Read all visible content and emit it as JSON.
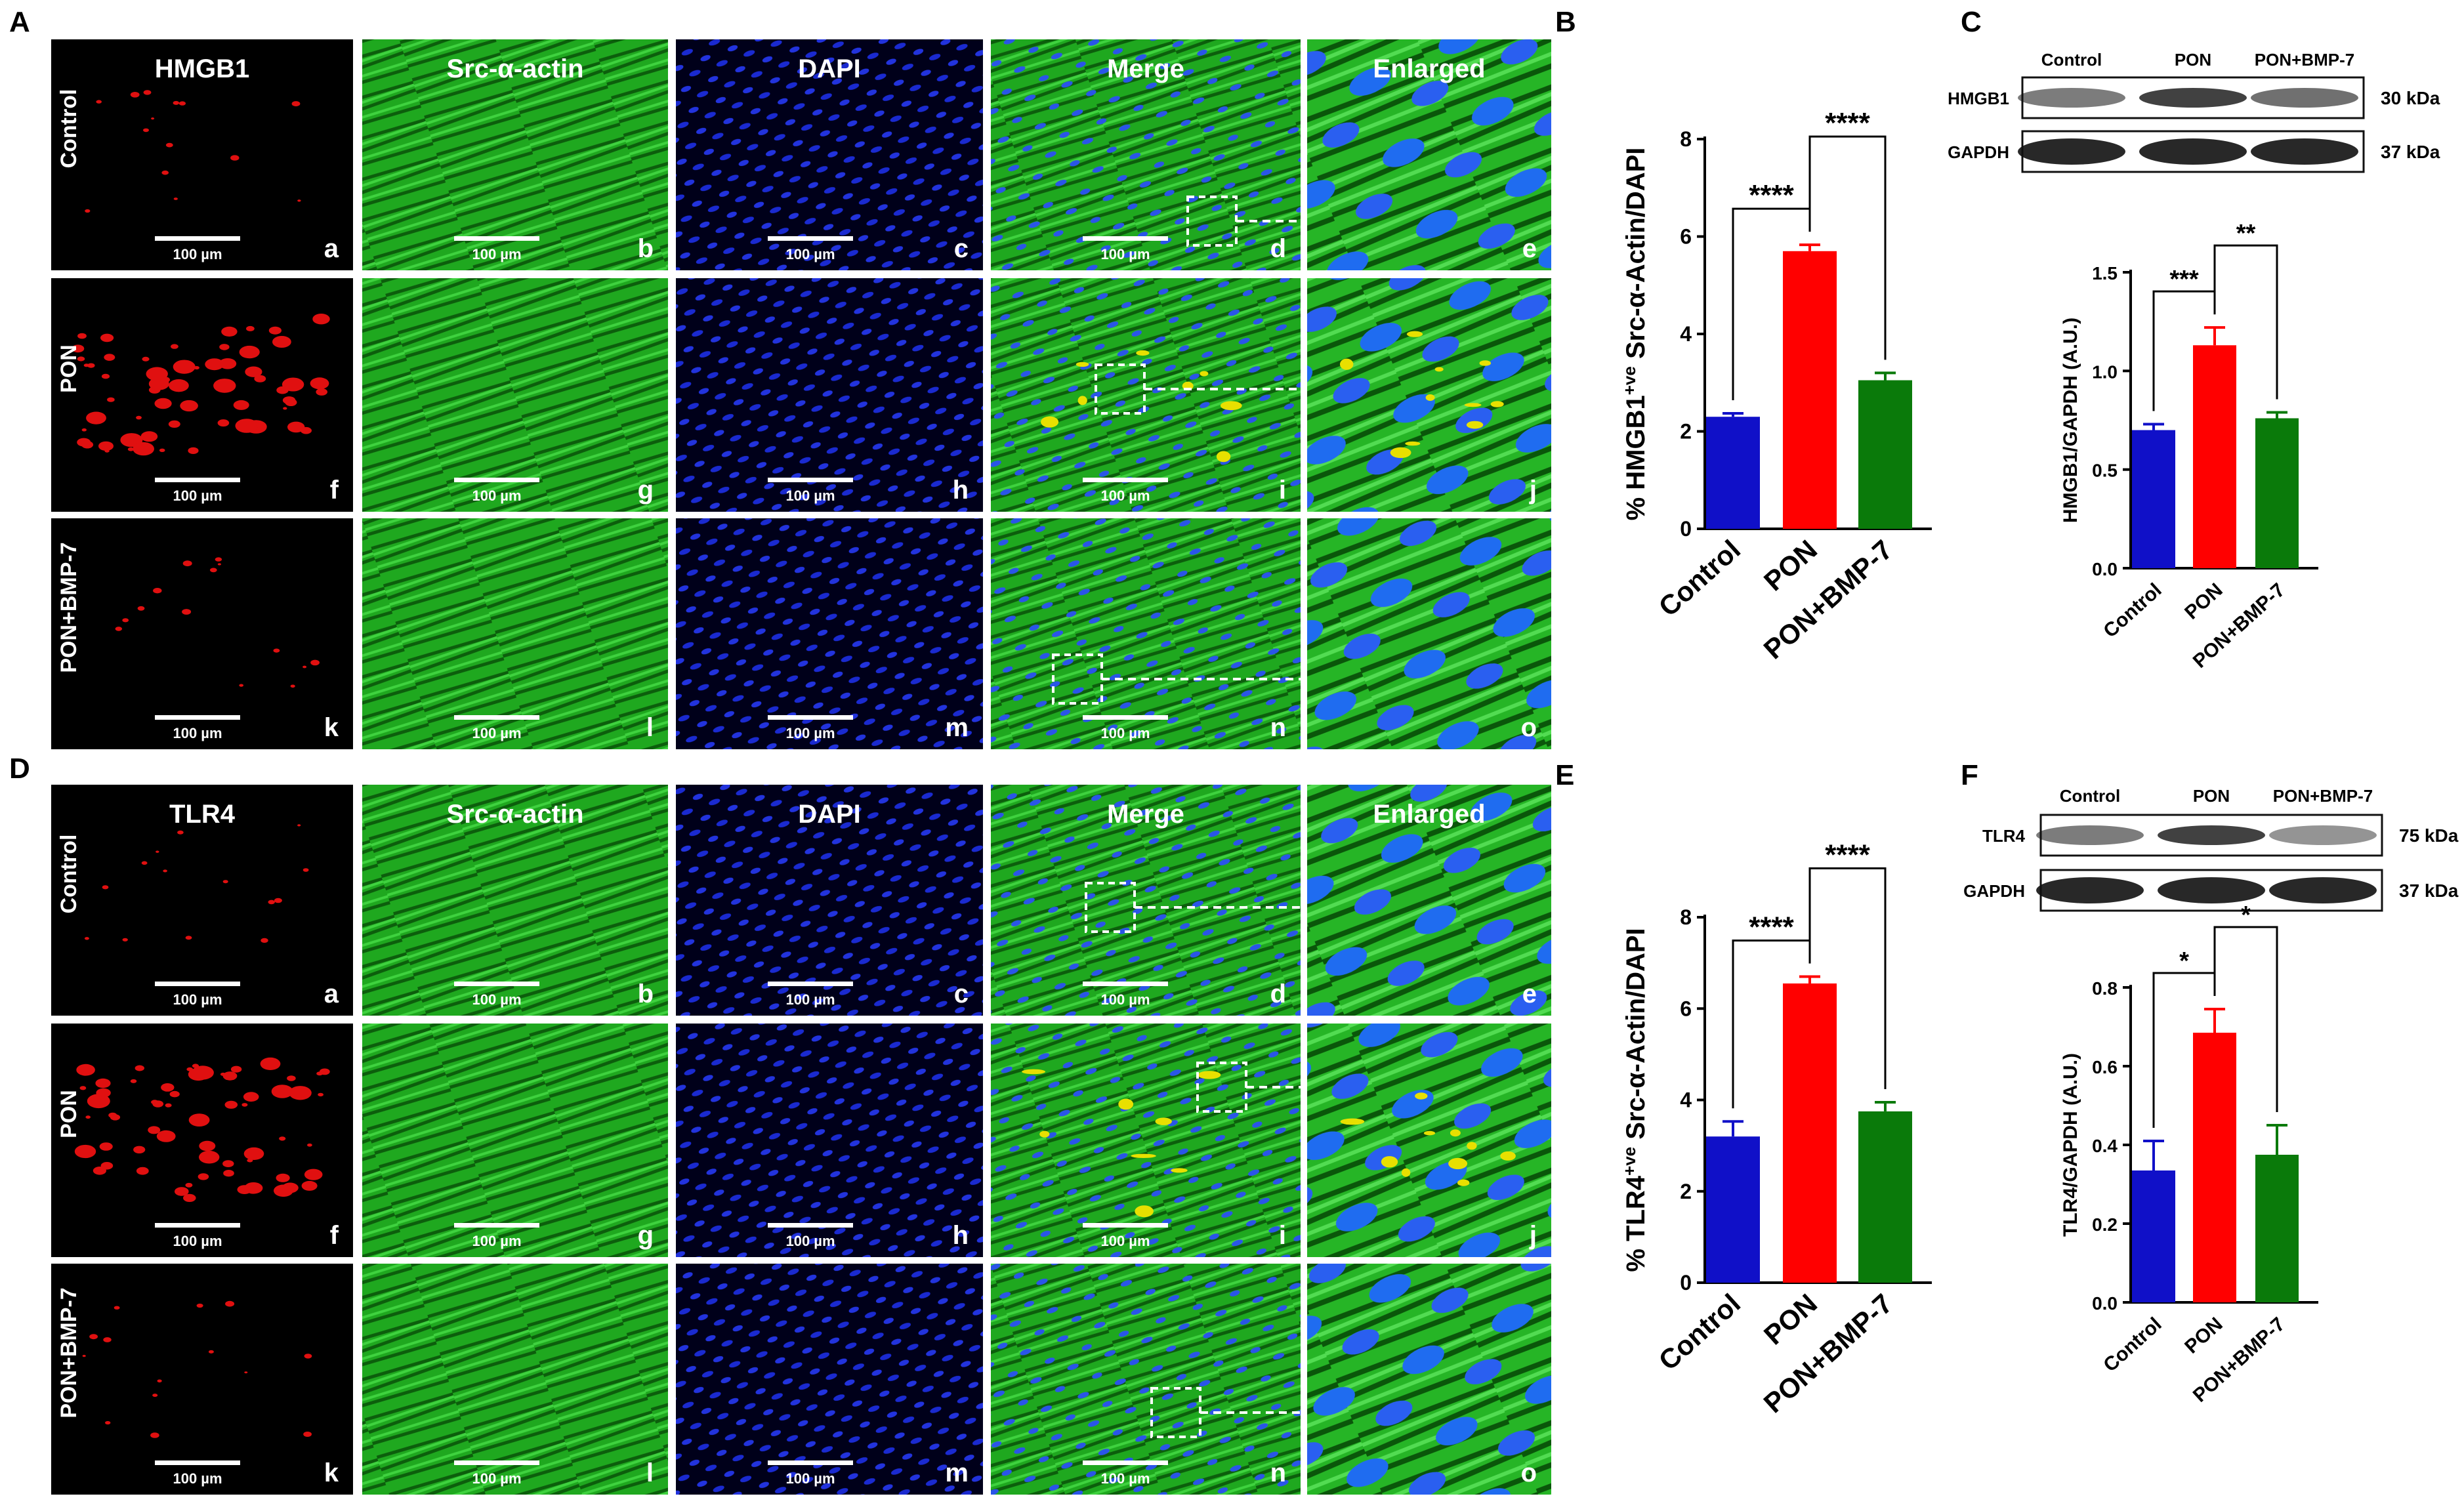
{
  "panels": {
    "A": "A",
    "B": "B",
    "C": "C",
    "D": "D",
    "E": "E",
    "F": "F"
  },
  "micrographs": [
    {
      "column_titles": [
        "HMGB1",
        "Src-α-actin",
        "DAPI",
        "Merge",
        "Enlarged"
      ],
      "row_labels": [
        "Control",
        "PON",
        "PON+BMP-7"
      ],
      "sub_letters": [
        [
          "a",
          "b",
          "c",
          "d",
          "e"
        ],
        [
          "f",
          "g",
          "h",
          "i",
          "j"
        ],
        [
          "k",
          "l",
          "m",
          "n",
          "o"
        ]
      ],
      "scale_bar_label": "100 µm"
    },
    {
      "column_titles": [
        "TLR4",
        "Src-α-actin",
        "DAPI",
        "Merge",
        "Enlarged"
      ],
      "row_labels": [
        "Control",
        "PON",
        "PON+BMP-7"
      ],
      "sub_letters": [
        [
          "a",
          "b",
          "c",
          "d",
          "e"
        ],
        [
          "f",
          "g",
          "h",
          "i",
          "j"
        ],
        [
          "k",
          "l",
          "m",
          "n",
          "o"
        ]
      ],
      "scale_bar_label": "100 µm"
    }
  ],
  "western_blots": [
    {
      "lanes": [
        "Control",
        "PON",
        "PON+BMP-7"
      ],
      "bands": [
        {
          "protein": "HMGB1",
          "size": "30 kDa"
        },
        {
          "protein": "GAPDH",
          "size": "37 kDa"
        }
      ]
    },
    {
      "lanes": [
        "Control",
        "PON",
        "PON+BMP-7"
      ],
      "bands": [
        {
          "protein": "TLR4",
          "size": "75 kDa"
        },
        {
          "protein": "GAPDH",
          "size": "37 kDa"
        }
      ]
    }
  ],
  "colors": {
    "Control": "#1010c8",
    "PON": "#ff0000",
    "PON+BMP-7": "#0a7a0a"
  },
  "chart_data": [
    {
      "id": "B",
      "type": "bar",
      "categories": [
        "Control",
        "PON",
        "PON+BMP-7"
      ],
      "values": [
        2.3,
        5.7,
        3.05
      ],
      "errors": [
        0.07,
        0.13,
        0.15
      ],
      "ylabel_pre": "% HMGB1",
      "ylabel_sup": "+ve",
      "ylabel_post": " Src-α-Actin/DAPI",
      "yticks": [
        "0",
        "2",
        "4",
        "6",
        "8"
      ],
      "ylim": [
        0,
        8
      ],
      "comparisons": [
        {
          "from": 0,
          "to": 1,
          "label": "****"
        },
        {
          "from": 1,
          "to": 2,
          "label": "****"
        }
      ]
    },
    {
      "id": "C",
      "type": "bar",
      "categories": [
        "Control",
        "PON",
        "PON+BMP-7"
      ],
      "values": [
        0.7,
        1.13,
        0.76
      ],
      "errors": [
        0.03,
        0.09,
        0.03
      ],
      "ylabel": "HMGB1/GAPDH (A.U.)",
      "yticks": [
        "0.0",
        "0.5",
        "1.0",
        "1.5"
      ],
      "ylim": [
        0,
        1.5
      ],
      "comparisons": [
        {
          "from": 0,
          "to": 1,
          "label": "***"
        },
        {
          "from": 1,
          "to": 2,
          "label": "**"
        }
      ]
    },
    {
      "id": "E",
      "type": "bar",
      "categories": [
        "Control",
        "PON",
        "PON+BMP-7"
      ],
      "values": [
        3.2,
        6.55,
        3.75
      ],
      "errors": [
        0.33,
        0.15,
        0.2
      ],
      "ylabel_pre": "% TLR4",
      "ylabel_sup": "+ve",
      "ylabel_post": " Src-α-Actin/DAPI",
      "yticks": [
        "0",
        "2",
        "4",
        "6",
        "8"
      ],
      "ylim": [
        0,
        8
      ],
      "comparisons": [
        {
          "from": 0,
          "to": 1,
          "label": "****"
        },
        {
          "from": 1,
          "to": 2,
          "label": "****"
        }
      ]
    },
    {
      "id": "F",
      "type": "bar",
      "categories": [
        "Control",
        "PON",
        "PON+BMP-7"
      ],
      "values": [
        0.335,
        0.685,
        0.375
      ],
      "errors": [
        0.075,
        0.06,
        0.075
      ],
      "ylabel": "TLR4/GAPDH (A.U.)",
      "yticks": [
        "0.0",
        "0.2",
        "0.4",
        "0.6",
        "0.8"
      ],
      "ylim": [
        0,
        0.8
      ],
      "comparisons": [
        {
          "from": 0,
          "to": 1,
          "label": "*"
        },
        {
          "from": 1,
          "to": 2,
          "label": "*"
        }
      ]
    }
  ]
}
